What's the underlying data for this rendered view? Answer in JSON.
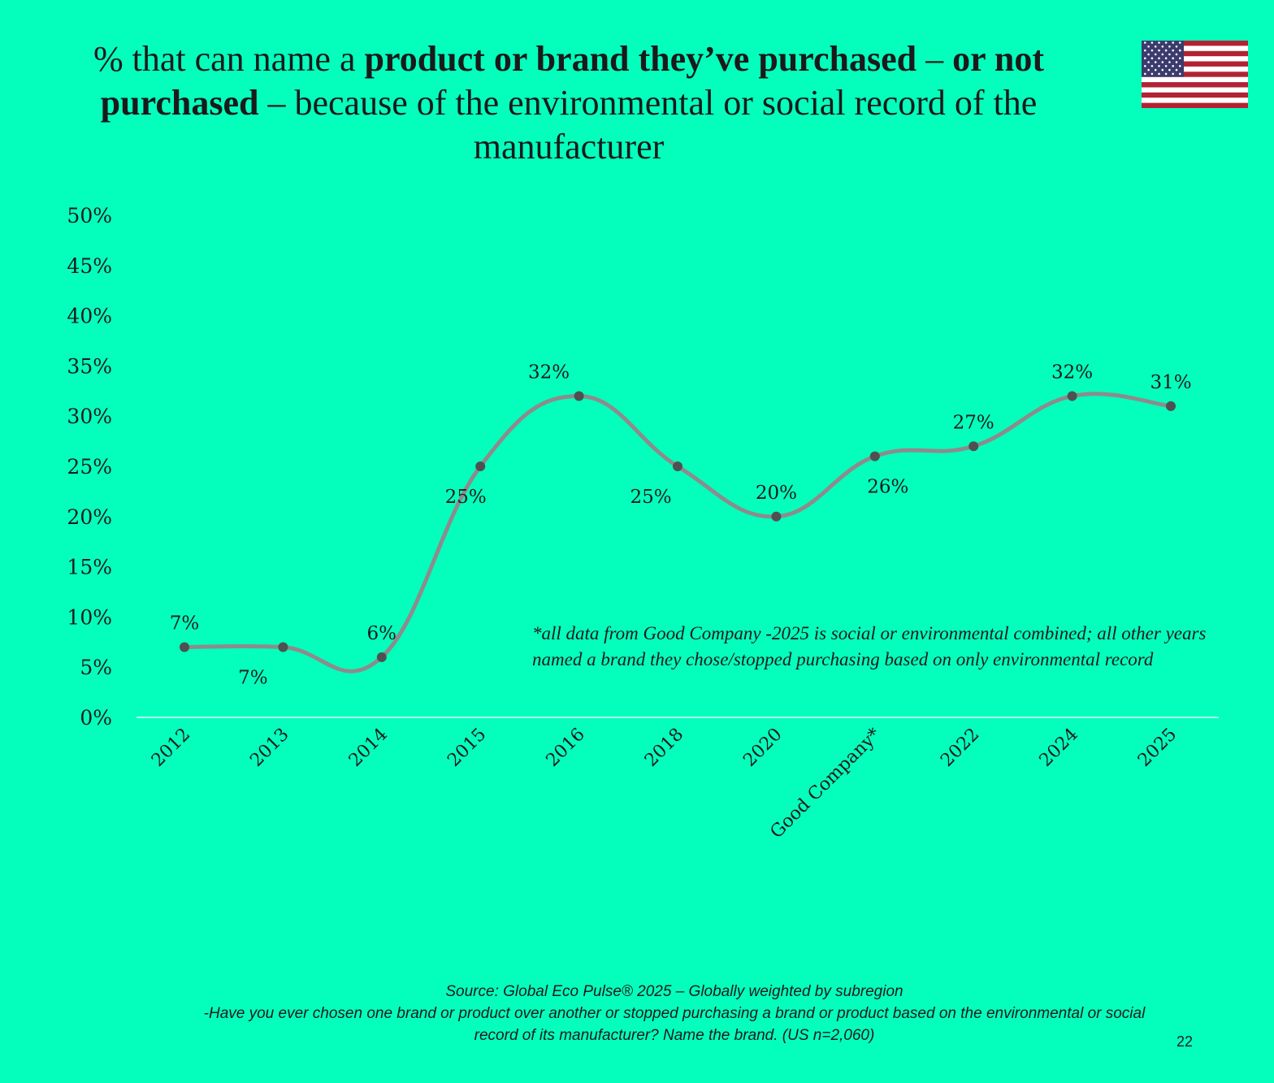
{
  "title": {
    "part1": "% that can name a ",
    "bold1": "product or brand they’ve purchased",
    "part2": " – ",
    "bold2": "or not purchased",
    "part3": " – because of the environmental or social record of the manufacturer"
  },
  "flag_icon": "us-flag",
  "colors": {
    "background": "#04FFBD",
    "line": "#8C8C8C",
    "marker": "#505050",
    "text": "#1a1a1a"
  },
  "chart_data": {
    "type": "line",
    "categories": [
      "2012",
      "2013",
      "2014",
      "2015",
      "2016",
      "2018",
      "2020",
      "Good Company*",
      "2022",
      "2024",
      "2025"
    ],
    "values": [
      7,
      7,
      6,
      25,
      32,
      25,
      20,
      26,
      27,
      32,
      31
    ],
    "data_labels": [
      "7%",
      "7%",
      "6%",
      "25%",
      "32%",
      "25%",
      "20%",
      "26%",
      "27%",
      "32%",
      "31%"
    ],
    "y_ticks": [
      "0%",
      "5%",
      "10%",
      "15%",
      "20%",
      "25%",
      "30%",
      "35%",
      "40%",
      "45%",
      "50%"
    ],
    "ylim": [
      0,
      50
    ],
    "smooth": true,
    "grid": false,
    "annotation": "*all data from Good Company -2025 is social or environmental combined; all other years named a brand they chose/stopped purchasing based on only environmental record"
  },
  "source": {
    "line1": "Source: Global Eco Pulse® 2025 – Globally weighted by subregion",
    "line2": "-Have you ever chosen one brand or product over another or stopped purchasing a brand or product based on the environmental or social record of its manufacturer? Name the brand. (US n=2,060)"
  },
  "page_number": "22"
}
